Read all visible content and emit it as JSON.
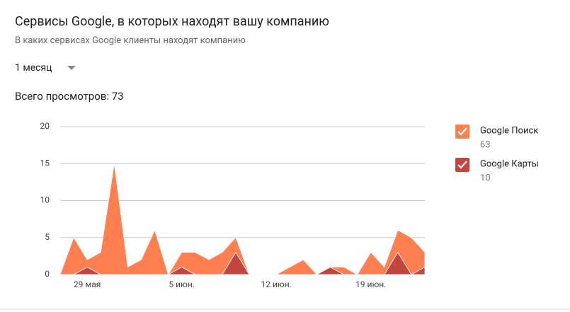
{
  "header": {
    "title": "Сервисы Google, в которых находят вашу компанию",
    "subtitle": "В каких сервисах Google клиенты находят компанию",
    "period": "1 месяц",
    "total_views": "Всего просмотров: 73"
  },
  "chart_data": {
    "type": "stacked-area",
    "categories": [
      null,
      null,
      "29 мая",
      null,
      null,
      null,
      null,
      null,
      null,
      "5 июн.",
      null,
      null,
      null,
      null,
      null,
      null,
      "12 июн.",
      null,
      null,
      null,
      null,
      null,
      null,
      "19 июн.",
      null,
      null,
      null,
      null
    ],
    "series": [
      {
        "name": "Google Карты",
        "total": 10,
        "color": "#c0463f",
        "values": [
          0,
          0,
          1,
          0,
          0,
          0,
          0,
          0,
          0,
          1,
          0,
          0,
          0,
          3,
          0,
          0,
          0,
          0,
          0,
          0,
          1,
          0,
          0,
          0,
          0,
          3,
          0,
          1
        ]
      },
      {
        "name": "Google Поиск",
        "total": 63,
        "color": "#ff7f50",
        "values": [
          0,
          5,
          1,
          3,
          15,
          1,
          2,
          6,
          0,
          2,
          3,
          2,
          3,
          2,
          0,
          0,
          0,
          1,
          2,
          0,
          0,
          1,
          0,
          3,
          1,
          3,
          5,
          2
        ]
      }
    ],
    "legend_order": [
      1,
      0
    ],
    "ylim": [
      0,
      20
    ],
    "yticks": [
      0,
      5,
      10,
      15,
      20
    ],
    "grid": true
  }
}
